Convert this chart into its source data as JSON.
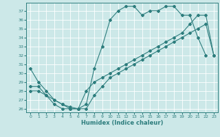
{
  "xlabel": "Humidex (Indice chaleur)",
  "bg_color": "#cce8e8",
  "grid_color": "#ffffff",
  "line_color": "#2d7d7d",
  "xlim": [
    -0.5,
    23.5
  ],
  "ylim": [
    25.6,
    37.9
  ],
  "yticks": [
    26,
    27,
    28,
    29,
    30,
    31,
    32,
    33,
    34,
    35,
    36,
    37
  ],
  "xticks": [
    0,
    1,
    2,
    3,
    4,
    5,
    6,
    7,
    8,
    9,
    10,
    11,
    12,
    13,
    14,
    15,
    16,
    17,
    18,
    19,
    20,
    21,
    22,
    23
  ],
  "line1_x": [
    0,
    1,
    2,
    3,
    4,
    5,
    6,
    7,
    8,
    9,
    10,
    11,
    12,
    13,
    14,
    15,
    16,
    17,
    18,
    19,
    20,
    21,
    22
  ],
  "line1_y": [
    30.5,
    29.0,
    28.0,
    27.0,
    26.5,
    26.2,
    26.0,
    26.5,
    30.5,
    33.0,
    36.0,
    37.0,
    37.5,
    37.5,
    36.5,
    37.0,
    37.0,
    37.5,
    37.5,
    36.5,
    36.5,
    34.0,
    32.0
  ],
  "line2_x": [
    0,
    1,
    2,
    3,
    4,
    5,
    6,
    7,
    8,
    9,
    10,
    11,
    12,
    13,
    14,
    15,
    16,
    17,
    18,
    19,
    20,
    21,
    22,
    23
  ],
  "line2_y": [
    28.5,
    28.5,
    27.5,
    26.5,
    26.0,
    26.0,
    26.0,
    28.0,
    29.0,
    29.5,
    30.0,
    30.5,
    31.0,
    31.5,
    32.0,
    32.5,
    33.0,
    33.5,
    34.0,
    34.5,
    35.5,
    36.5,
    36.5,
    32.0
  ],
  "line3_x": [
    0,
    1,
    2,
    3,
    4,
    5,
    6,
    7,
    8,
    9,
    10,
    11,
    12,
    13,
    14,
    15,
    16,
    17,
    18,
    19,
    20,
    21,
    22,
    23
  ],
  "line3_y": [
    28.0,
    28.0,
    27.5,
    27.0,
    26.5,
    26.0,
    26.0,
    26.0,
    27.5,
    28.5,
    29.5,
    30.0,
    30.5,
    31.0,
    31.5,
    32.0,
    32.5,
    33.0,
    33.5,
    34.0,
    34.5,
    35.0,
    35.5,
    32.0
  ]
}
